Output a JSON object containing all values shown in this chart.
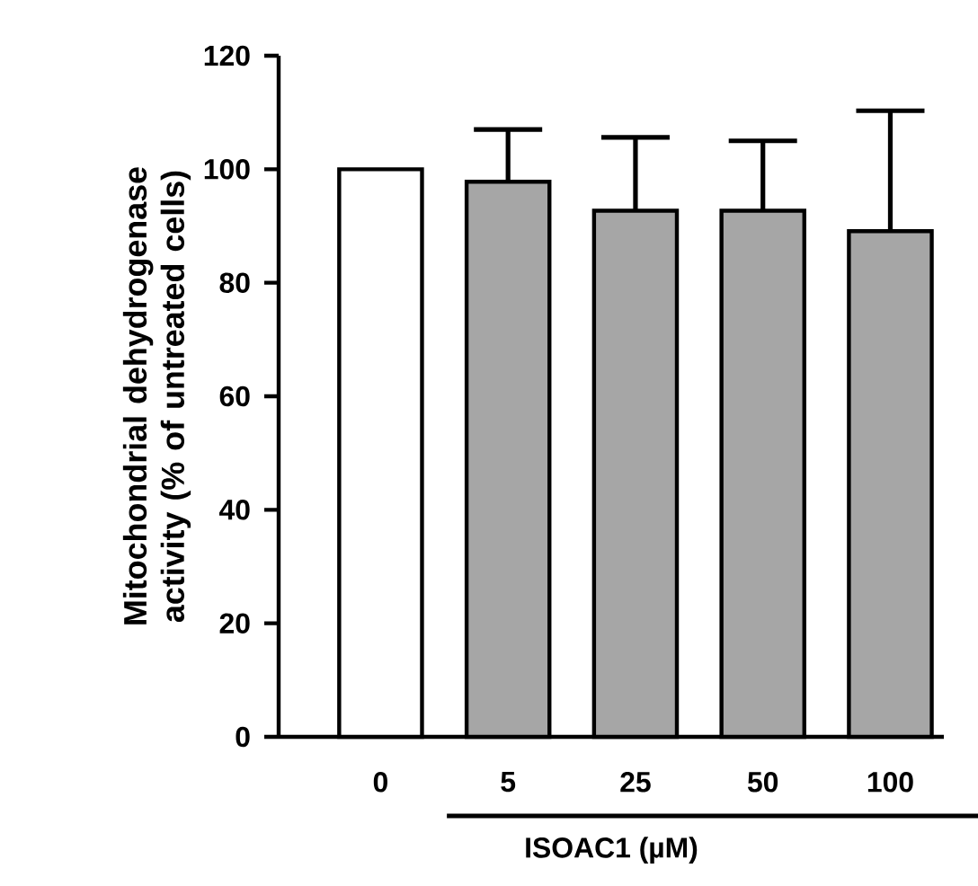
{
  "chart_data": {
    "type": "bar",
    "xlabel": "ISOAC1 (µM)",
    "ylabel": "Mitochondrial dehydrogenase activity (% of untreated cells)",
    "categories": [
      "0",
      "5",
      "25",
      "50",
      "100"
    ],
    "values": [
      100,
      97.8,
      92.7,
      92.7,
      89.1
    ],
    "colors": [
      "#ffffff",
      "#a6a6a6",
      "#a6a6a6",
      "#a6a6a6",
      "#a6a6a6"
    ],
    "errors": [
      null,
      [
        97.8,
        107
      ],
      [
        92.7,
        105.6
      ],
      [
        92.7,
        105
      ],
      [
        89.1,
        110.3
      ]
    ],
    "ylim": [
      0,
      120
    ],
    "yticks": [
      0,
      20,
      40,
      60,
      80,
      100,
      120
    ],
    "grid": false
  }
}
